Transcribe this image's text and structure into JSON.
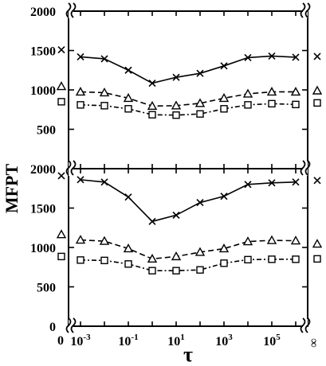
{
  "chart_data": [
    {
      "type": "line",
      "panel": "top",
      "ylim": [
        0,
        2000
      ],
      "yticks": [
        "2000",
        "1500",
        "1000",
        "500"
      ],
      "ylabel": "MFPT",
      "x_left_break": "0",
      "x_right_break": "∞",
      "tau": [
        0.001,
        0.01,
        0.1,
        1,
        10,
        100,
        1000,
        10000,
        100000,
        1000000
      ],
      "series": [
        {
          "marker": "x",
          "dash": "solid",
          "tau0": 1510,
          "values": [
            1420,
            1395,
            1250,
            1085,
            1160,
            1210,
            1305,
            1410,
            1430,
            1415
          ],
          "tau_inf": 1425
        },
        {
          "marker": "triangle",
          "dash": "dashed",
          "tau0": 1045,
          "values": [
            975,
            965,
            895,
            795,
            800,
            830,
            895,
            950,
            975,
            975
          ],
          "tau_inf": 990
        },
        {
          "marker": "square",
          "dash": "dashdot",
          "tau0": 850,
          "values": [
            810,
            800,
            760,
            685,
            680,
            695,
            760,
            810,
            825,
            815
          ],
          "tau_inf": 835
        }
      ]
    },
    {
      "type": "line",
      "panel": "bottom",
      "ylim": [
        0,
        2000
      ],
      "yticks": [
        "2000",
        "1500",
        "1000",
        "500",
        "0"
      ],
      "xlabel": "τ",
      "xticks": [
        "10^-3",
        "10^-1",
        "10^1",
        "10^3",
        "10^5"
      ],
      "x_left_break": "0",
      "x_right_break": "∞",
      "tau": [
        0.001,
        0.01,
        0.1,
        1,
        10,
        100,
        1000,
        10000,
        100000,
        1000000
      ],
      "series": [
        {
          "marker": "x",
          "dash": "solid",
          "tau0": 1910,
          "values": [
            1860,
            1830,
            1640,
            1330,
            1410,
            1570,
            1650,
            1800,
            1820,
            1830
          ],
          "tau_inf": 1850
        },
        {
          "marker": "triangle",
          "dash": "dashed",
          "tau0": 1165,
          "values": [
            1095,
            1080,
            985,
            855,
            885,
            940,
            985,
            1075,
            1090,
            1085
          ],
          "tau_inf": 1045
        },
        {
          "marker": "square",
          "dash": "dashdot",
          "tau0": 885,
          "values": [
            840,
            835,
            790,
            705,
            705,
            715,
            800,
            845,
            850,
            850
          ],
          "tau_inf": 855
        }
      ]
    }
  ]
}
